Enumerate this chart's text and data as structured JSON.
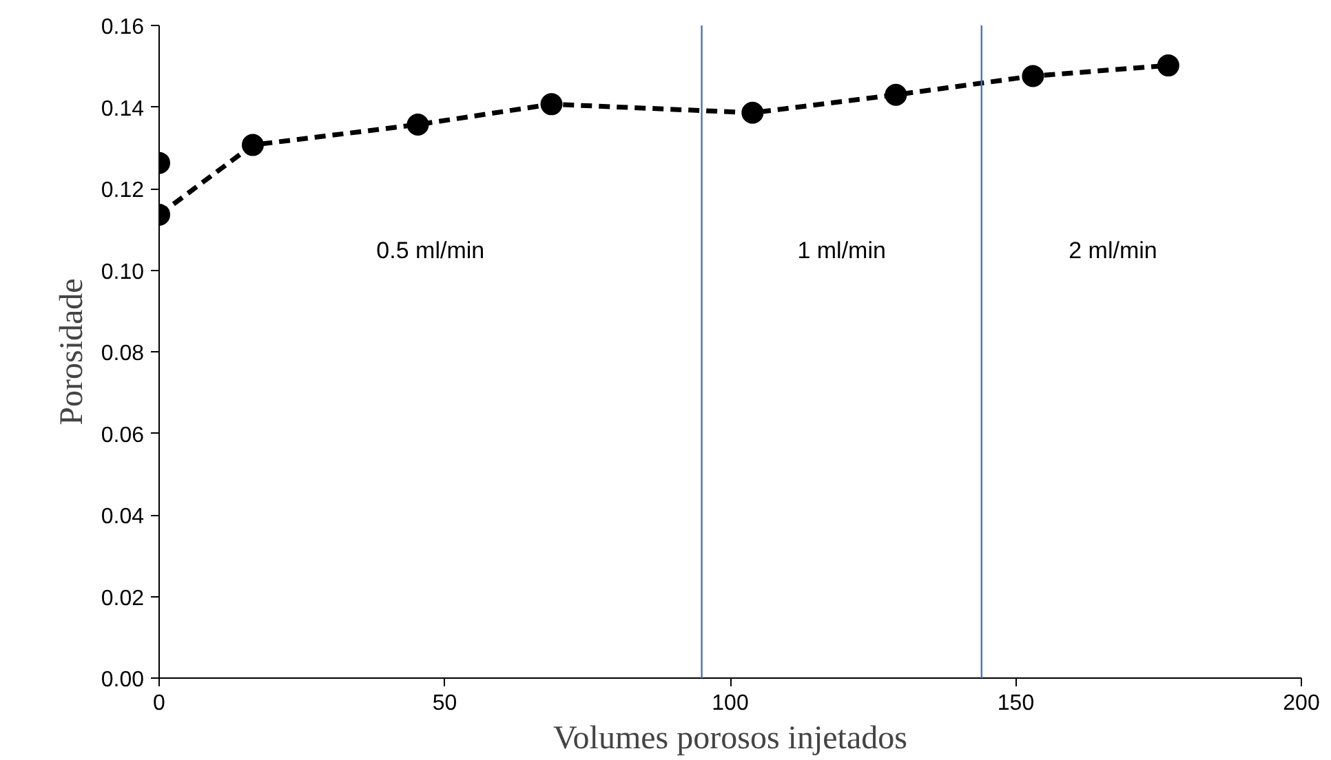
{
  "chart_data": {
    "type": "line",
    "xlabel": "Volumes porosos injetados",
    "ylabel": "Porosidade",
    "series": [
      {
        "type": "scatter",
        "color": "#000000",
        "x": [
          0
        ],
        "values": [
          0.1263
        ]
      },
      {
        "color": "#000000",
        "x": [
          0,
          16.4,
          45.3,
          68.7,
          103.9,
          129,
          153,
          176.7
        ],
        "values": [
          0.1136,
          0.1307,
          0.1357,
          0.1407,
          0.1386,
          0.143,
          0.1476,
          0.1502
        ]
      }
    ],
    "xlim": [
      0,
      200
    ],
    "xticks": [
      0,
      50,
      100,
      150,
      200
    ],
    "ylim": [
      0,
      0.16
    ],
    "yticks": [
      {
        "value": 0,
        "label": "0.00"
      },
      {
        "value": 0.02,
        "label": "0.02"
      },
      {
        "value": 0.04,
        "label": "0.04"
      },
      {
        "value": 0.06,
        "label": "0.06"
      },
      {
        "value": 0.08,
        "label": "0.08"
      },
      {
        "value": 0.1,
        "label": "0.10"
      },
      {
        "value": 0.12,
        "label": "0.12"
      },
      {
        "value": 0.14,
        "label": "0.14"
      },
      {
        "value": 0.16,
        "label": "0.16"
      }
    ],
    "ref_lines": [
      {
        "axis": "x",
        "value": 95,
        "color": "#4472c4"
      },
      {
        "axis": "x",
        "value": 144,
        "color": "#4472c4"
      }
    ],
    "annotations": [
      "0.5 ml/min",
      "1 ml/min",
      "2 ml/min"
    ],
    "grid": false,
    "marker": "circle",
    "line_style": "dashed"
  }
}
